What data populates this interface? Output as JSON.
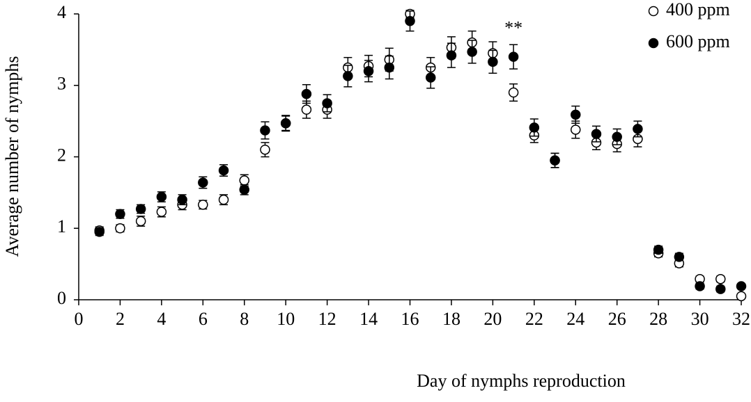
{
  "chart_data": {
    "type": "scatter",
    "xlabel": "Day of nymphs reproduction",
    "ylabel": "Average number of nymphs",
    "x": [
      1,
      2,
      3,
      4,
      5,
      6,
      7,
      8,
      9,
      10,
      11,
      12,
      13,
      14,
      15,
      16,
      17,
      18,
      19,
      20,
      21,
      22,
      23,
      24,
      25,
      26,
      27,
      28,
      29,
      30,
      31,
      32
    ],
    "series": [
      {
        "name": "400 ppm",
        "color": "#000000",
        "marker": "open",
        "values": [
          0.97,
          1.0,
          1.1,
          1.23,
          1.33,
          1.33,
          1.4,
          1.67,
          2.1,
          2.47,
          2.66,
          2.66,
          3.25,
          3.27,
          3.36,
          4.0,
          3.25,
          3.53,
          3.6,
          3.45,
          2.9,
          2.3,
          1.95,
          2.38,
          2.2,
          2.18,
          2.25,
          0.65,
          0.51,
          0.29,
          0.29,
          0.05
        ],
        "errors": [
          0.05,
          0.05,
          0.07,
          0.07,
          0.07,
          0.06,
          0.07,
          0.08,
          0.1,
          0.1,
          0.12,
          0.12,
          0.14,
          0.15,
          0.16,
          0.05,
          0.14,
          0.15,
          0.16,
          0.16,
          0.12,
          0.1,
          0.1,
          0.12,
          0.1,
          0.11,
          0.11,
          0.05,
          0.05,
          0.04,
          0.04,
          0.03
        ]
      },
      {
        "name": "600 ppm",
        "color": "#000000",
        "marker": "filled",
        "values": [
          0.95,
          1.2,
          1.27,
          1.44,
          1.4,
          1.64,
          1.81,
          1.54,
          2.37,
          2.47,
          2.88,
          2.75,
          3.13,
          3.2,
          3.25,
          3.9,
          3.11,
          3.42,
          3.47,
          3.33,
          3.4,
          2.41,
          1.95,
          2.59,
          2.32,
          2.28,
          2.39,
          0.7,
          0.6,
          0.19,
          0.15,
          0.19
        ],
        "errors": [
          0.05,
          0.06,
          0.06,
          0.07,
          0.07,
          0.08,
          0.08,
          0.07,
          0.12,
          0.11,
          0.13,
          0.12,
          0.15,
          0.15,
          0.16,
          0.14,
          0.15,
          0.17,
          0.16,
          0.16,
          0.17,
          0.12,
          0.1,
          0.12,
          0.11,
          0.11,
          0.11,
          0.05,
          0.05,
          0.04,
          0.04,
          0.03
        ]
      }
    ],
    "annotations": [
      {
        "text": "**",
        "x": 21,
        "y": 3.78
      }
    ],
    "xlim": [
      0,
      32
    ],
    "xticks": [
      0,
      2,
      4,
      6,
      8,
      10,
      12,
      14,
      16,
      18,
      20,
      22,
      24,
      26,
      28,
      30,
      32
    ],
    "ylim": [
      0,
      4
    ],
    "yticks": [
      0,
      1,
      2,
      3,
      4
    ],
    "legend": "upper right"
  }
}
